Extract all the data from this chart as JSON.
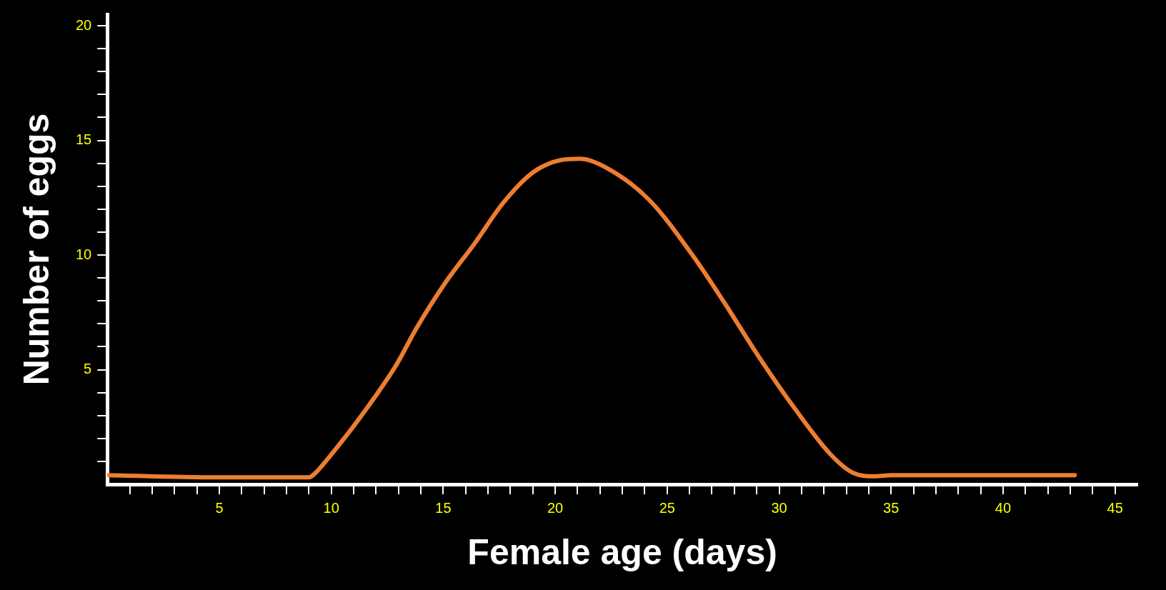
{
  "chart_data": {
    "type": "line",
    "xlabel": "Female age (days)",
    "ylabel": "Number of eggs",
    "x": [
      0,
      5,
      9,
      9.3,
      10,
      11.2,
      12.9,
      13.8,
      15.1,
      16.4,
      17.7,
      19,
      20.3,
      21.1,
      22.3,
      24.2,
      26.2,
      27.5,
      29.1,
      30.7,
      32.3,
      33.3,
      34.3,
      35,
      43.2
    ],
    "series": [
      {
        "color": "#ed7d31",
        "values": [
          0.4,
          0.3,
          0.3,
          0.5,
          1.3,
          2.8,
          5.2,
          6.8,
          8.8,
          10.5,
          12.3,
          13.6,
          14.15,
          14.2,
          13.8,
          12.4,
          9.9,
          8,
          5.55,
          3.3,
          1.3,
          0.5,
          0.35,
          0.4,
          0.4
        ]
      }
    ],
    "xlim": [
      0,
      46
    ],
    "ylim": [
      0,
      20.5
    ],
    "xticks": [
      {
        "value": 1,
        "label": null
      },
      {
        "value": 2,
        "label": null
      },
      {
        "value": 3,
        "label": null
      },
      {
        "value": 4,
        "label": null
      },
      5,
      {
        "value": 6,
        "label": null
      },
      {
        "value": 7,
        "label": null
      },
      {
        "value": 8,
        "label": null
      },
      {
        "value": 9,
        "label": null
      },
      10,
      {
        "value": 11,
        "label": null
      },
      {
        "value": 12,
        "label": null
      },
      {
        "value": 13,
        "label": null
      },
      {
        "value": 14,
        "label": null
      },
      15,
      {
        "value": 16,
        "label": null
      },
      {
        "value": 17,
        "label": null
      },
      {
        "value": 18,
        "label": null
      },
      {
        "value": 19,
        "label": null
      },
      20,
      {
        "value": 21,
        "label": null
      },
      {
        "value": 22,
        "label": null
      },
      {
        "value": 23,
        "label": null
      },
      {
        "value": 24,
        "label": null
      },
      25,
      {
        "value": 26,
        "label": null
      },
      {
        "value": 27,
        "label": null
      },
      {
        "value": 28,
        "label": null
      },
      {
        "value": 29,
        "label": null
      },
      30,
      {
        "value": 31,
        "label": null
      },
      {
        "value": 32,
        "label": null
      },
      {
        "value": 33,
        "label": null
      },
      {
        "value": 34,
        "label": null
      },
      35,
      {
        "value": 36,
        "label": null
      },
      {
        "value": 37,
        "label": null
      },
      {
        "value": 38,
        "label": null
      },
      {
        "value": 39,
        "label": null
      },
      40,
      {
        "value": 41,
        "label": null
      },
      {
        "value": 42,
        "label": null
      },
      {
        "value": 43,
        "label": null
      },
      {
        "value": 44,
        "label": null
      },
      45
    ],
    "yticks": [
      {
        "value": 1,
        "label": null
      },
      {
        "value": 2,
        "label": null
      },
      {
        "value": 3,
        "label": null
      },
      {
        "value": 4,
        "label": null
      },
      5,
      {
        "value": 6,
        "label": null
      },
      {
        "value": 7,
        "label": null
      },
      {
        "value": 8,
        "label": null
      },
      {
        "value": 9,
        "label": null
      },
      10,
      {
        "value": 11,
        "label": null
      },
      {
        "value": 12,
        "label": null
      },
      {
        "value": 13,
        "label": null
      },
      {
        "value": 14,
        "label": null
      },
      15,
      {
        "value": 16,
        "label": null
      },
      {
        "value": 17,
        "label": null
      },
      {
        "value": 18,
        "label": null
      },
      {
        "value": 19,
        "label": null
      },
      20
    ],
    "grid": false,
    "legend": false,
    "marker": "none",
    "line_style": "solid"
  }
}
